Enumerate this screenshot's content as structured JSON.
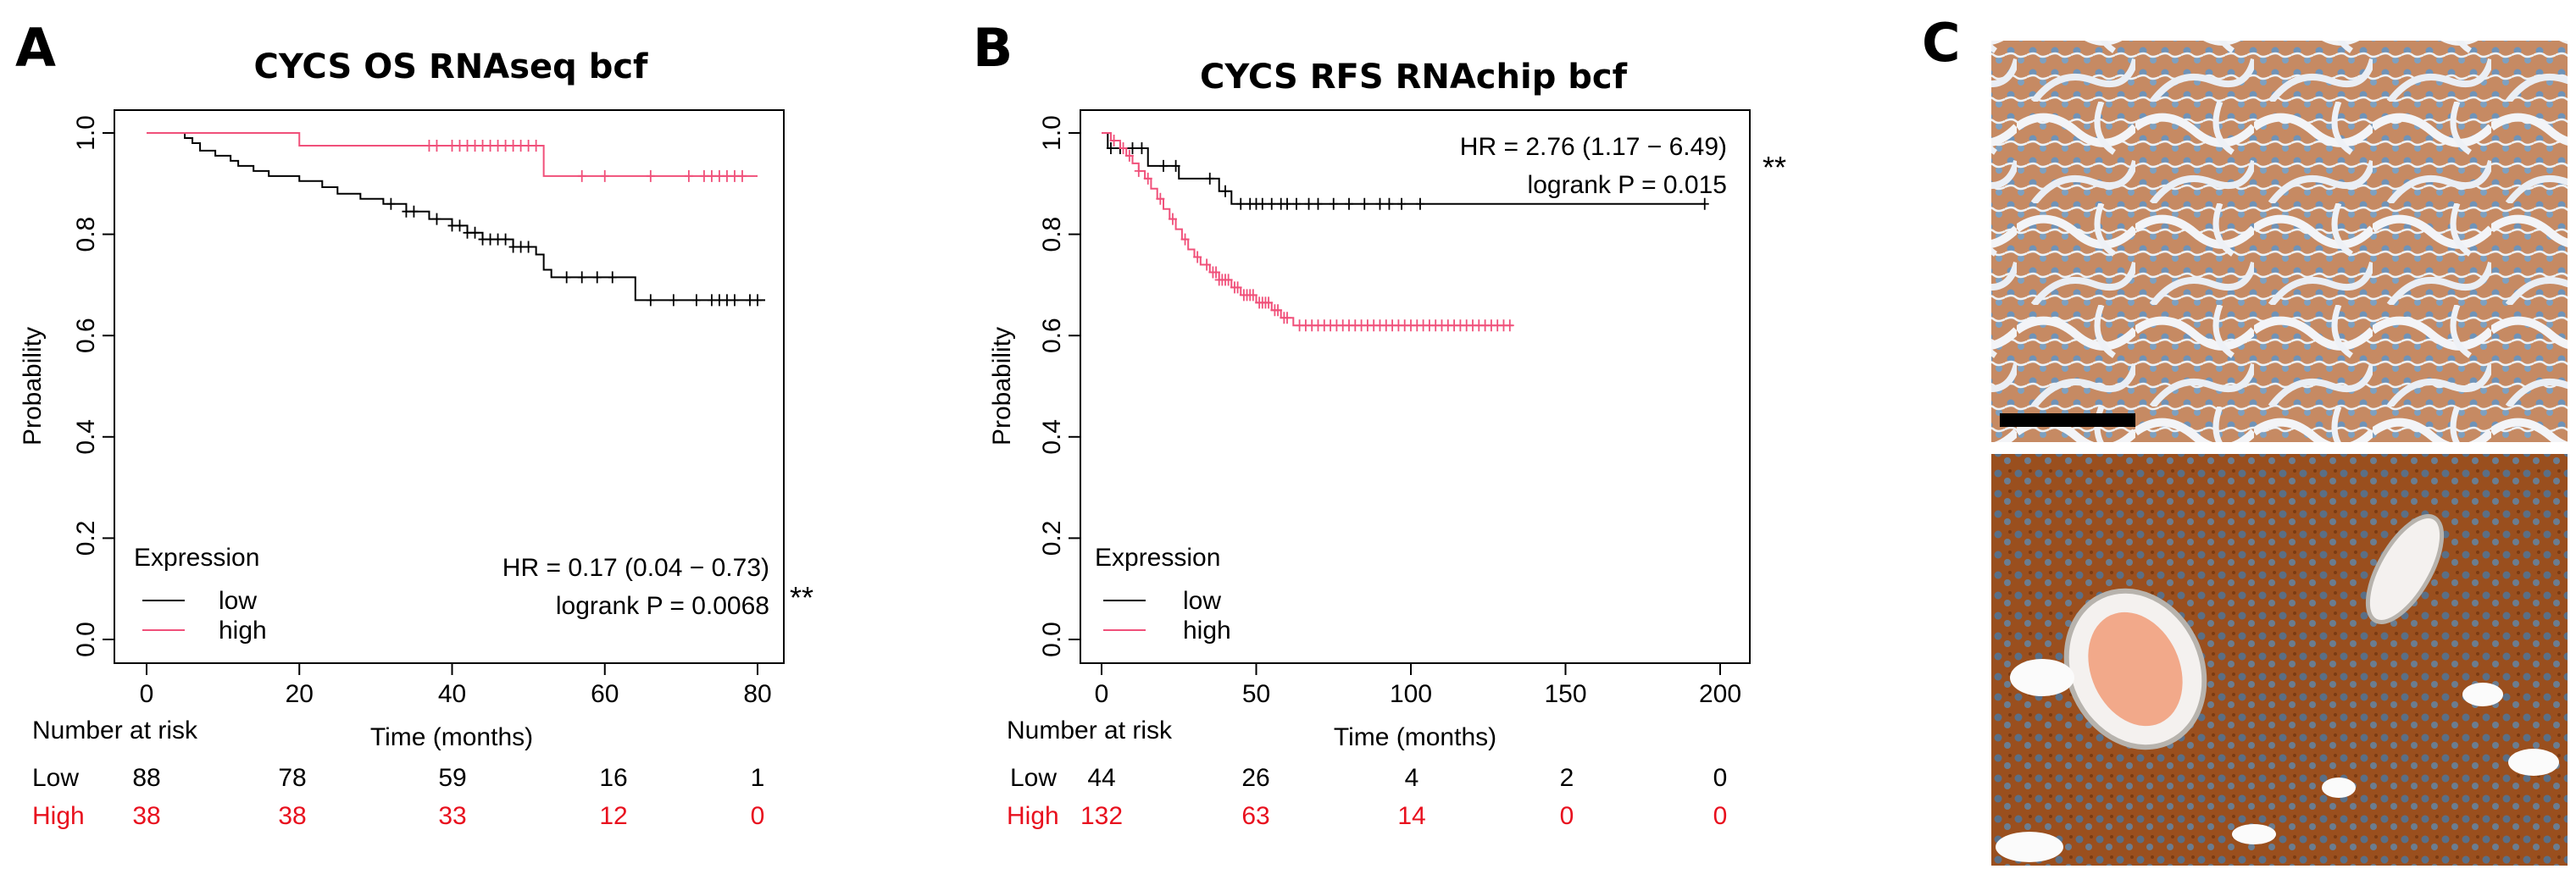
{
  "panel_letters": {
    "a": "A",
    "b": "B",
    "c": "C"
  },
  "colors": {
    "low": "#000000",
    "high": "#f0507a",
    "high_risk_text": "#e8101e"
  },
  "chart_data": [
    {
      "type": "line",
      "title": "CYCS OS RNAseq bcf",
      "xlabel": "Time (months)",
      "ylabel": "Probability",
      "xlim": [
        0,
        80
      ],
      "ylim": [
        0,
        1
      ],
      "xticks": [
        "0",
        "20",
        "40",
        "60",
        "80"
      ],
      "yticks": [
        "0.0",
        "0.2",
        "0.4",
        "0.6",
        "0.8",
        "1.0"
      ],
      "legend": {
        "title": "Expression",
        "entries": [
          "low",
          "high"
        ],
        "position": "bottom-left"
      },
      "stats": {
        "hr": "HR = 0.17 (0.04 − 0.73)",
        "p": "logrank P = 0.0068",
        "stars": "**"
      },
      "series": [
        {
          "name": "low",
          "steps": [
            [
              0,
              1.0
            ],
            [
              5,
              0.99
            ],
            [
              6,
              0.98
            ],
            [
              7,
              0.965
            ],
            [
              9,
              0.955
            ],
            [
              11,
              0.945
            ],
            [
              12,
              0.935
            ],
            [
              14,
              0.925
            ],
            [
              16,
              0.915
            ],
            [
              20,
              0.905
            ],
            [
              23,
              0.893
            ],
            [
              25,
              0.88
            ],
            [
              28,
              0.87
            ],
            [
              31,
              0.86
            ],
            [
              34,
              0.845
            ],
            [
              37,
              0.83
            ],
            [
              40,
              0.817
            ],
            [
              42,
              0.803
            ],
            [
              44,
              0.79
            ],
            [
              48,
              0.775
            ],
            [
              51,
              0.76
            ],
            [
              52,
              0.73
            ],
            [
              53,
              0.715
            ],
            [
              64,
              0.67
            ],
            [
              81,
              0.67
            ]
          ],
          "censor": [
            32,
            34,
            35,
            38,
            40,
            41,
            42,
            43,
            44,
            45,
            46,
            47,
            48,
            49,
            50,
            55,
            57,
            59,
            61,
            66,
            69,
            72,
            74,
            75,
            76,
            77,
            79,
            80
          ]
        },
        {
          "name": "high",
          "steps": [
            [
              0,
              1.0
            ],
            [
              20,
              0.975
            ],
            [
              52,
              0.915
            ],
            [
              80,
              0.915
            ]
          ],
          "censor": [
            37,
            38,
            40,
            41,
            42,
            43,
            44,
            45,
            46,
            47,
            48,
            49,
            50,
            51,
            57,
            60,
            66,
            71,
            73,
            74,
            75,
            76,
            77,
            78
          ]
        }
      ],
      "risk_table": {
        "header": "Number at risk",
        "x": [
          0,
          20,
          40,
          60,
          80
        ],
        "rows": [
          {
            "label": "Low",
            "values": [
              "88",
              "78",
              "59",
              "16",
              "1"
            ]
          },
          {
            "label": "High",
            "values": [
              "38",
              "38",
              "33",
              "12",
              "0"
            ]
          }
        ]
      }
    },
    {
      "type": "line",
      "title": "CYCS RFS RNAchip bcf",
      "xlabel": "Time (months)",
      "ylabel": "Probability",
      "xlim": [
        0,
        200
      ],
      "ylim": [
        0,
        1
      ],
      "xticks": [
        "0",
        "50",
        "100",
        "150",
        "200"
      ],
      "yticks": [
        "0.0",
        "0.2",
        "0.4",
        "0.6",
        "0.8",
        "1.0"
      ],
      "legend": {
        "title": "Expression",
        "entries": [
          "low",
          "high"
        ],
        "position": "bottom-left"
      },
      "stats": {
        "hr": "HR = 2.76 (1.17 − 6.49)",
        "p": "logrank P = 0.015",
        "stars": "**"
      },
      "series": [
        {
          "name": "low",
          "steps": [
            [
              0,
              1.0
            ],
            [
              2,
              0.97
            ],
            [
              15,
              0.935
            ],
            [
              25,
              0.91
            ],
            [
              38,
              0.885
            ],
            [
              42,
              0.86
            ],
            [
              195,
              0.86
            ]
          ],
          "censor": [
            3,
            6,
            10,
            13,
            20,
            24,
            35,
            40,
            45,
            48,
            50,
            52,
            55,
            58,
            60,
            63,
            67,
            70,
            75,
            80,
            85,
            90,
            93,
            97,
            103,
            195
          ]
        },
        {
          "name": "high",
          "steps": [
            [
              0,
              1.0
            ],
            [
              3,
              0.985
            ],
            [
              6,
              0.97
            ],
            [
              8,
              0.955
            ],
            [
              10,
              0.94
            ],
            [
              12,
              0.925
            ],
            [
              14,
              0.91
            ],
            [
              16,
              0.89
            ],
            [
              18,
              0.87
            ],
            [
              20,
              0.85
            ],
            [
              22,
              0.83
            ],
            [
              24,
              0.81
            ],
            [
              26,
              0.79
            ],
            [
              28,
              0.77
            ],
            [
              30,
              0.755
            ],
            [
              32,
              0.74
            ],
            [
              35,
              0.725
            ],
            [
              38,
              0.71
            ],
            [
              42,
              0.695
            ],
            [
              45,
              0.68
            ],
            [
              50,
              0.665
            ],
            [
              55,
              0.65
            ],
            [
              58,
              0.635
            ],
            [
              62,
              0.62
            ],
            [
              133,
              0.62
            ]
          ],
          "censor": [
            4,
            7,
            9,
            12,
            15,
            19,
            23,
            27,
            31,
            34,
            36,
            37,
            38,
            39,
            40,
            41,
            43,
            44,
            46,
            47,
            48,
            49,
            51,
            52,
            53,
            54,
            56,
            57,
            59,
            60,
            64,
            66,
            68,
            70,
            72,
            74,
            76,
            78,
            80,
            82,
            84,
            86,
            88,
            90,
            92,
            94,
            96,
            98,
            100,
            102,
            104,
            106,
            108,
            110,
            112,
            114,
            116,
            118,
            120,
            122,
            124,
            126,
            128,
            130,
            132
          ]
        }
      ],
      "risk_table": {
        "header": "Number at risk",
        "x": [
          0,
          50,
          100,
          150,
          200
        ],
        "rows": [
          {
            "label": "Low",
            "values": [
              "44",
              "26",
              "4",
              "2",
              "0"
            ]
          },
          {
            "label": "High",
            "values": [
              "132",
              "63",
              "14",
              "0",
              "0"
            ]
          }
        ]
      }
    }
  ]
}
